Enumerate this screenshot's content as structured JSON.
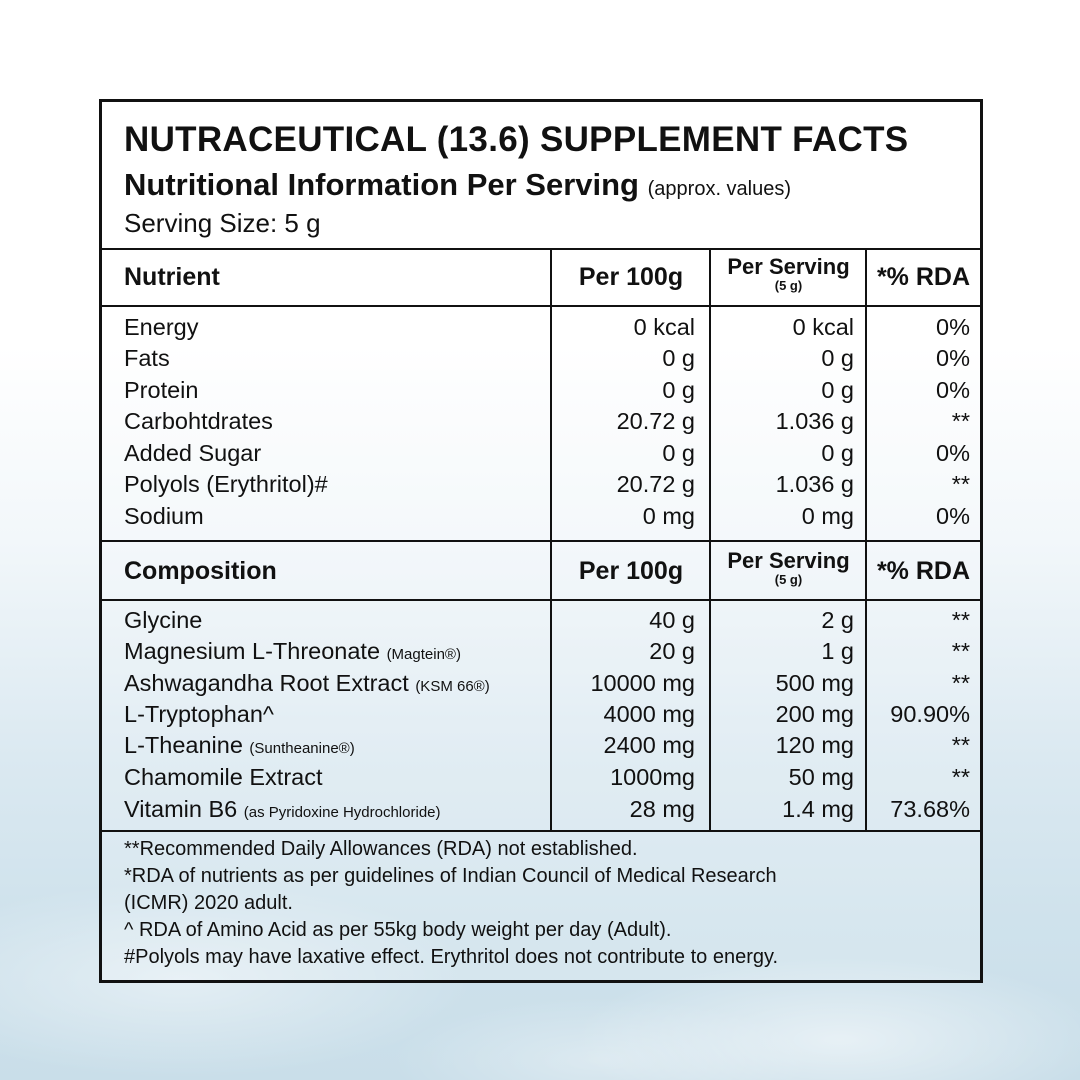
{
  "header": {
    "title": "NUTRACEUTICAL (13.6) SUPPLEMENT FACTS",
    "subtitle": "Nutritional Information Per Serving",
    "subtitle_note": "(approx. values)",
    "serving_size": "Serving Size: 5 g"
  },
  "nutrients": {
    "headers": {
      "name": "Nutrient",
      "per100": "Per 100g",
      "per_serving": "Per Serving",
      "per_serving_sub": "(5 g)",
      "rda": "*% RDA"
    },
    "rows": [
      {
        "name": "Energy",
        "per100": "0 kcal",
        "serving": "0 kcal",
        "rda": "0%"
      },
      {
        "name": "Fats",
        "per100": "0 g",
        "serving": "0 g",
        "rda": "0%"
      },
      {
        "name": "Protein",
        "per100": "0 g",
        "serving": "0 g",
        "rda": "0%"
      },
      {
        "name": "Carbohtdrates",
        "per100": "20.72 g",
        "serving": "1.036 g",
        "rda": "**"
      },
      {
        "name": "Added Sugar",
        "per100": "0 g",
        "serving": "0 g",
        "rda": "0%"
      },
      {
        "name": "Polyols (Erythritol)#",
        "per100": "20.72 g",
        "serving": "1.036 g",
        "rda": "**"
      },
      {
        "name": "Sodium",
        "per100": "0 mg",
        "serving": "0 mg",
        "rda": "0%"
      }
    ]
  },
  "composition": {
    "headers": {
      "name": "Composition",
      "per100": "Per 100g",
      "per_serving": "Per Serving",
      "per_serving_sub": "(5 g)",
      "rda": "*% RDA"
    },
    "rows": [
      {
        "name": "Glycine",
        "note": "",
        "per100": "40 g",
        "serving": "2 g",
        "rda": "**"
      },
      {
        "name": "Magnesium L-Threonate",
        "note": "(Magtein®)",
        "per100": "20 g",
        "serving": "1 g",
        "rda": "**"
      },
      {
        "name": "Ashwagandha Root Extract",
        "note": "(KSM 66®)",
        "per100": "10000 mg",
        "serving": "500 mg",
        "rda": "**"
      },
      {
        "name": "L-Tryptophan^",
        "note": "",
        "per100": "4000 mg",
        "serving": "200 mg",
        "rda": "90.90%"
      },
      {
        "name": "L-Theanine",
        "note": "(Suntheanine®)",
        "per100": "2400 mg",
        "serving": "120 mg",
        "rda": "**"
      },
      {
        "name": "Chamomile Extract",
        "note": "",
        "per100": "1000mg",
        "serving": "50 mg",
        "rda": "**"
      },
      {
        "name": "Vitamin B6",
        "note": "(as Pyridoxine Hydrochloride)",
        "per100": "28 mg",
        "serving": "1.4 mg",
        "rda": "73.68%"
      }
    ]
  },
  "footnotes": [
    "**Recommended Daily Allowances (RDA) not established.",
    "*RDA of nutrients as per guidelines of Indian Council of Medical Research",
    "(ICMR) 2020 adult.",
    "^ RDA of Amino Acid as per 55kg body weight per day (Adult).",
    "#Polyols may have laxative effect. Erythritol does not contribute to energy."
  ]
}
